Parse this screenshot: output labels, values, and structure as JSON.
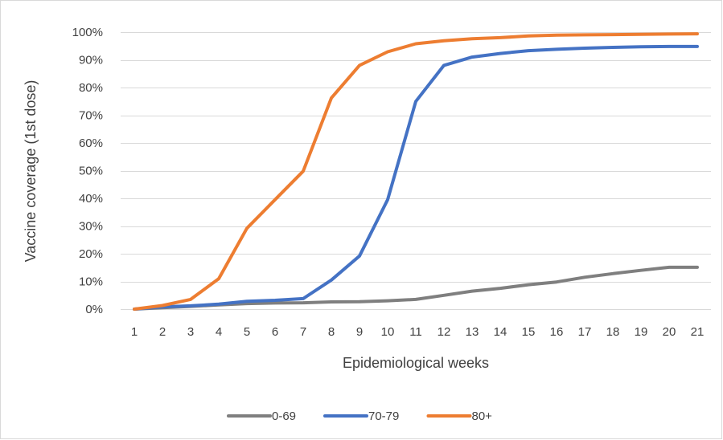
{
  "chart_data": {
    "type": "line",
    "xlabel": "Epidemiological weeks",
    "ylabel": "Vaccine coverage (1st dose)",
    "x": [
      1,
      2,
      3,
      4,
      5,
      6,
      7,
      8,
      9,
      10,
      11,
      12,
      13,
      14,
      15,
      16,
      17,
      18,
      19,
      20,
      21
    ],
    "ylim": [
      0,
      100
    ],
    "yticks": [
      0,
      10,
      20,
      30,
      40,
      50,
      60,
      70,
      80,
      90,
      100
    ],
    "ytick_labels": [
      "0%",
      "10%",
      "20%",
      "30%",
      "40%",
      "50%",
      "60%",
      "70%",
      "80%",
      "90%",
      "100%"
    ],
    "grid": true,
    "legend_position": "bottom",
    "series": [
      {
        "name": "0-69",
        "color": "#7f7f7f",
        "values": [
          0,
          0.5,
          1,
          1.5,
          2,
          2.2,
          2.3,
          2.6,
          2.7,
          3,
          3.5,
          5,
          6.5,
          7.5,
          8.8,
          9.8,
          11.5,
          12.8,
          14,
          15.1,
          15.1
        ]
      },
      {
        "name": "70-79",
        "color": "#4472c4",
        "values": [
          0,
          0.8,
          1.2,
          1.8,
          2.8,
          3.2,
          3.8,
          10.5,
          19.2,
          39.5,
          75,
          88,
          91,
          92.3,
          93.3,
          93.8,
          94.2,
          94.5,
          94.7,
          94.8,
          94.8
        ]
      },
      {
        "name": "80+",
        "color": "#ed7d31",
        "values": [
          0,
          1.3,
          3.5,
          11,
          29.2,
          39.5,
          49.8,
          76.2,
          88,
          92.9,
          95.8,
          96.9,
          97.6,
          98,
          98.6,
          98.9,
          99,
          99.1,
          99.2,
          99.3,
          99.4
        ]
      }
    ]
  }
}
